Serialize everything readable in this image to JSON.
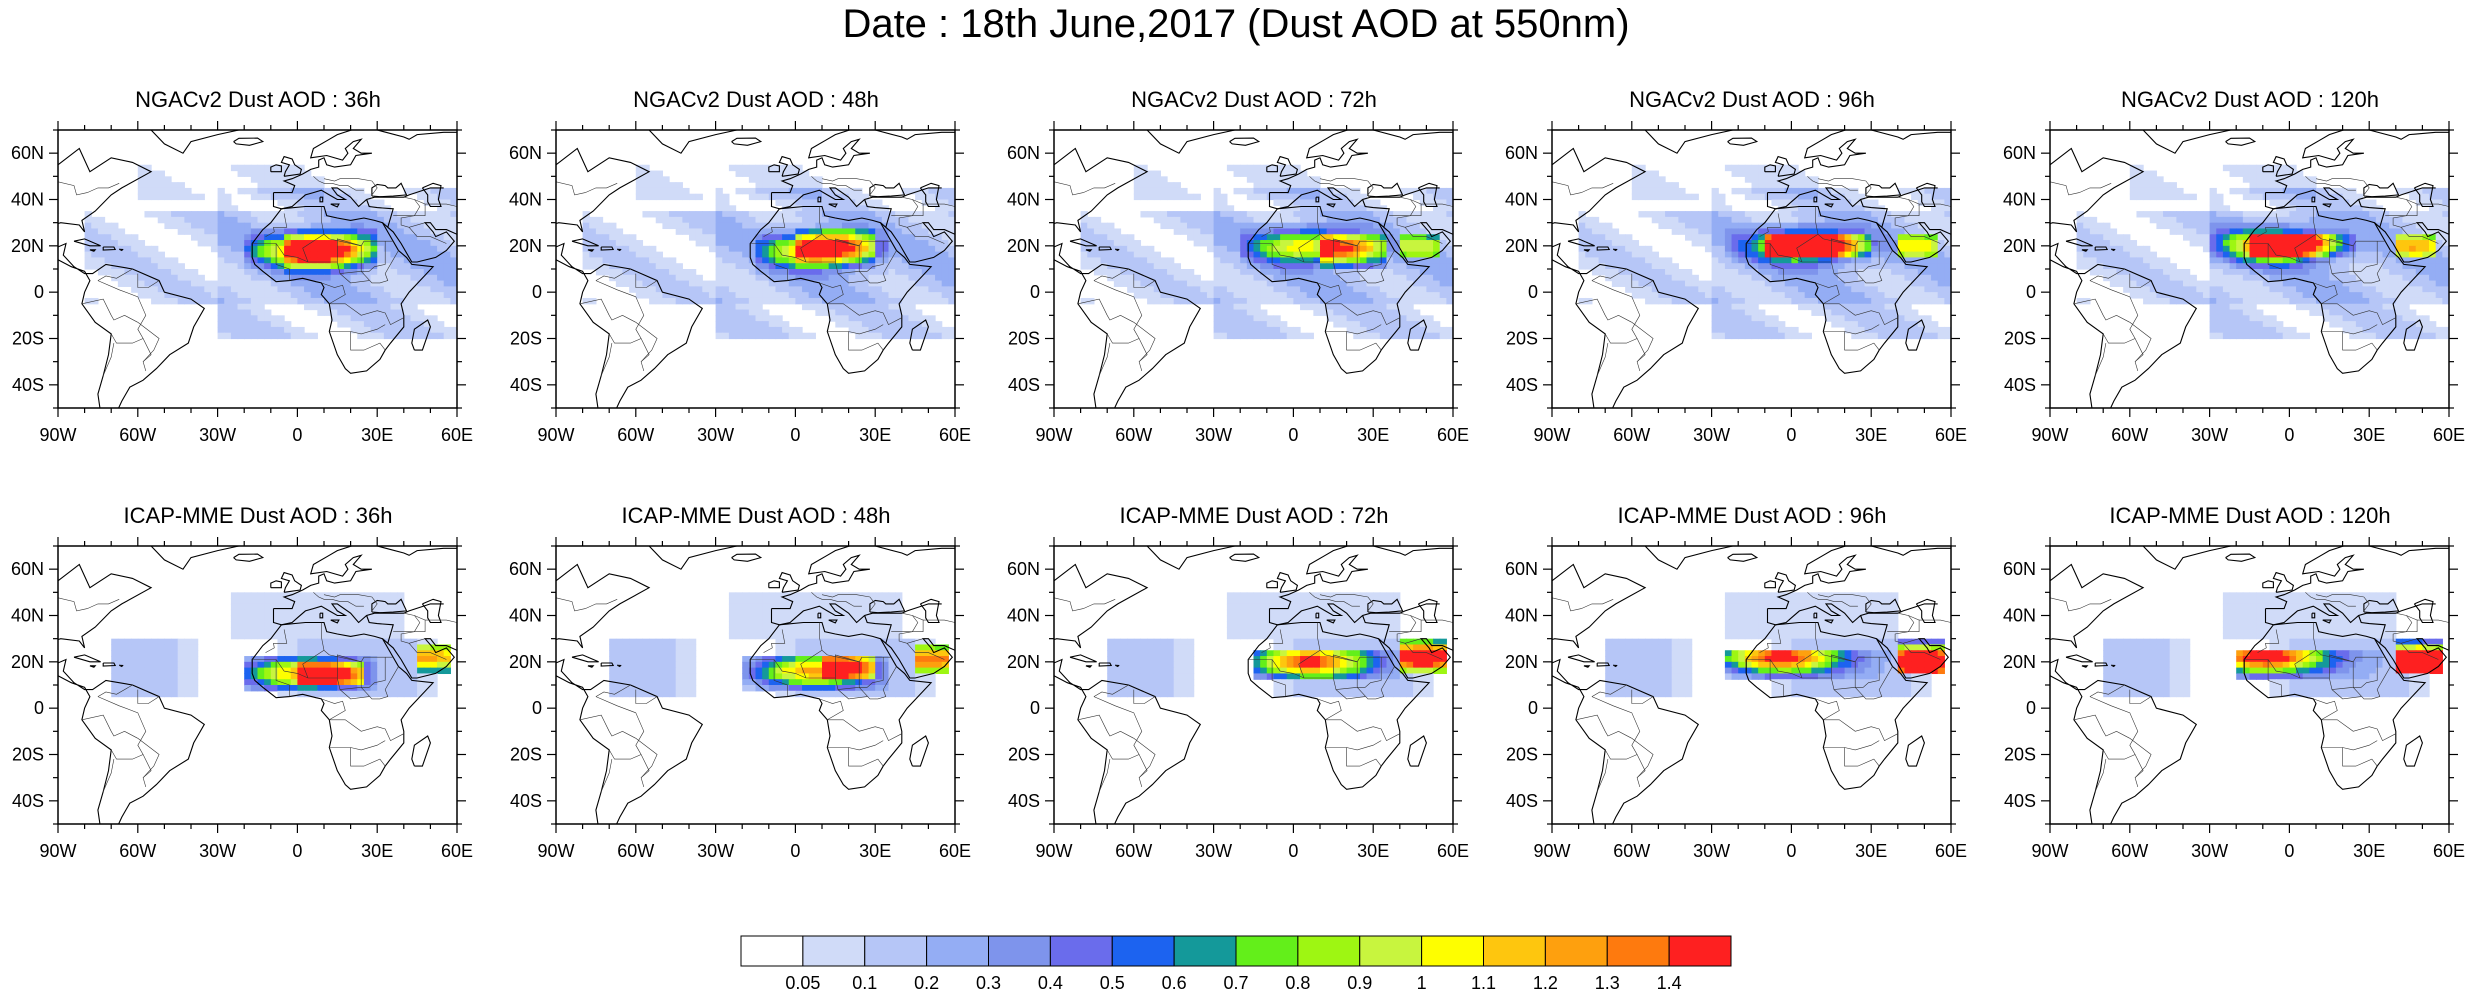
{
  "title": "Date : 18th June,2017 (Dust AOD at 550nm)",
  "panels": [
    {
      "row": 0,
      "col": 0,
      "title": "NGACv2 Dust AOD : 36h"
    },
    {
      "row": 0,
      "col": 1,
      "title": "NGACv2 Dust AOD : 48h"
    },
    {
      "row": 0,
      "col": 2,
      "title": "NGACv2 Dust AOD : 72h"
    },
    {
      "row": 0,
      "col": 3,
      "title": "NGACv2 Dust AOD : 96h"
    },
    {
      "row": 0,
      "col": 4,
      "title": "NGACv2 Dust AOD : 120h"
    },
    {
      "row": 1,
      "col": 0,
      "title": "ICAP-MME Dust AOD : 36h"
    },
    {
      "row": 1,
      "col": 1,
      "title": "ICAP-MME Dust AOD : 48h"
    },
    {
      "row": 1,
      "col": 2,
      "title": "ICAP-MME Dust AOD : 72h"
    },
    {
      "row": 1,
      "col": 3,
      "title": "ICAP-MME Dust AOD : 96h"
    },
    {
      "row": 1,
      "col": 4,
      "title": "ICAP-MME Dust AOD : 120h"
    }
  ],
  "map": {
    "lon_range": [
      -90,
      60
    ],
    "lat_range": [
      -50,
      70
    ],
    "lon_ticks": [
      {
        "value": -90,
        "label": "90W"
      },
      {
        "value": -60,
        "label": "60W"
      },
      {
        "value": -30,
        "label": "30W"
      },
      {
        "value": 0,
        "label": "0"
      },
      {
        "value": 30,
        "label": "30E"
      },
      {
        "value": 60,
        "label": "60E"
      }
    ],
    "lat_ticks": [
      {
        "value": 60,
        "label": "60N"
      },
      {
        "value": 40,
        "label": "40N"
      },
      {
        "value": 20,
        "label": "20N"
      },
      {
        "value": 0,
        "label": "0"
      },
      {
        "value": -20,
        "label": "20S"
      },
      {
        "value": -40,
        "label": "40S"
      }
    ]
  },
  "colorbar": {
    "levels": [
      "0.05",
      "0.1",
      "0.2",
      "0.3",
      "0.4",
      "0.5",
      "0.6",
      "0.7",
      "0.8",
      "0.9",
      "1",
      "1.1",
      "1.2",
      "1.3",
      "1.4"
    ],
    "colors": [
      "#ffffff",
      "#d0dbf8",
      "#b6c6f7",
      "#94adf4",
      "#7e94ec",
      "#6a6cec",
      "#1c63f0",
      "#14999a",
      "#63ef1a",
      "#9ef612",
      "#c8f53e",
      "#fefe00",
      "#fec60e",
      "#fea00e",
      "#fe7a0e",
      "#fe2020"
    ]
  }
}
